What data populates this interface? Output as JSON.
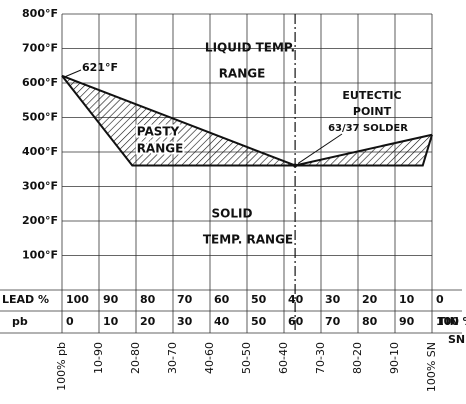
{
  "chart_data": {
    "type": "phase",
    "xlim": [
      0,
      100
    ],
    "ylim": [
      0,
      800
    ],
    "xticks": [
      0,
      10,
      20,
      30,
      40,
      50,
      60,
      70,
      80,
      90,
      100
    ],
    "yticks": [
      {
        "value": 800,
        "label": "800°F"
      },
      {
        "value": 700,
        "label": "700°F"
      },
      {
        "value": 600,
        "label": "600°F"
      },
      {
        "value": 500,
        "label": "500°F"
      },
      {
        "value": 400,
        "label": "400°F"
      },
      {
        "value": 300,
        "label": "300°F"
      },
      {
        "value": 200,
        "label": "200°F"
      },
      {
        "value": 100,
        "label": "100°F"
      }
    ],
    "lead_title": "LEAD %",
    "lead_values": [
      100,
      90,
      80,
      70,
      60,
      50,
      40,
      30,
      20,
      10,
      0
    ],
    "tin_title": "TIN %",
    "pb_title": "pb",
    "sn_title": "SN",
    "ratio_labels": [
      "100% pb",
      "10-90",
      "20-80",
      "30-70",
      "40-60",
      "50-50",
      "60-40",
      "70-30",
      "80-20",
      "90-10",
      "100% SN"
    ],
    "liquidus": {
      "x": [
        0,
        63,
        100
      ],
      "y": [
        621,
        361,
        450
      ]
    },
    "solidus": {
      "x": [
        0,
        19,
        97.5,
        100
      ],
      "y": [
        621,
        361,
        361,
        450
      ]
    },
    "eutectic": {
      "x": 63,
      "y": 361
    },
    "annotations": {
      "peak": "621°F",
      "liquid": [
        "LIQUID TEMP.",
        "RANGE"
      ],
      "pasty": [
        "PASTY",
        "RANGE"
      ],
      "eutectic": [
        "EUTECTIC",
        "POINT",
        "63/37 SOLDER"
      ],
      "solid": [
        "SOLID",
        "TEMP. RANGE"
      ]
    }
  }
}
